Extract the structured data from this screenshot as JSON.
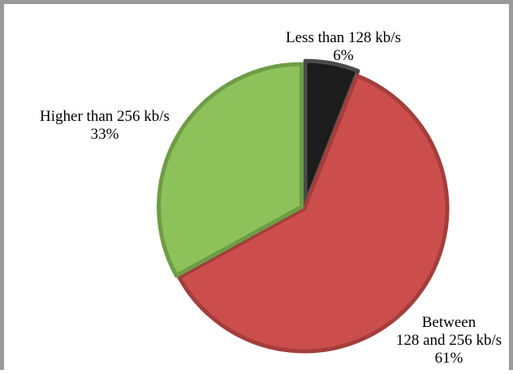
{
  "chart_data": {
    "type": "pie",
    "title": "",
    "start_angle_deg": 0,
    "direction": "clockwise",
    "slices": [
      {
        "name": "Less than 128 kb/s",
        "value": 6,
        "value_label": "6%",
        "label_lines": [
          "Less than 128 kb/s",
          "6%"
        ],
        "color": "#1c1c1c",
        "edge_color": "#4a4a4a"
      },
      {
        "name": "Between 128 and 256 kb/s",
        "value": 61,
        "value_label": "61%",
        "label_lines": [
          "Between",
          "128 and 256 kb/s",
          "61%"
        ],
        "color": "#cc4e4c",
        "edge_color": "#a33e3c"
      },
      {
        "name": "Higher than 256 kb/s",
        "value": 33,
        "value_label": "33%",
        "label_lines": [
          "Higher than 256 kb/s",
          "33%"
        ],
        "color": "#8dc15a",
        "edge_color": "#6e9d45"
      }
    ],
    "legend": "none"
  }
}
